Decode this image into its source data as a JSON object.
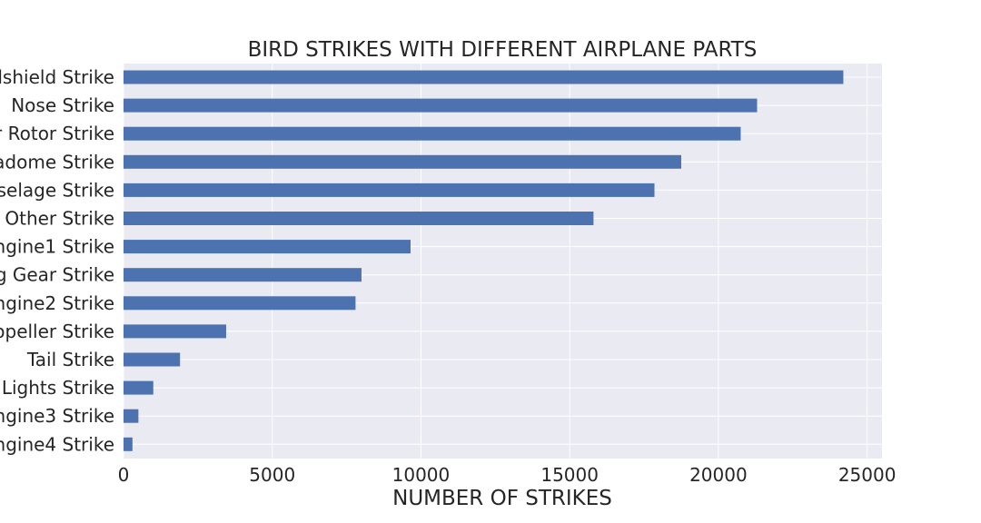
{
  "chart_data": {
    "type": "bar",
    "orientation": "horizontal",
    "title": "BIRD STRIKES WITH DIFFERENT AIRPLANE PARTS",
    "xlabel": "NUMBER OF STRIKES",
    "ylabel": "",
    "categories_top_to_bottom_visible_text": [
      "dshield Strike",
      "Nose Strike",
      "r Rotor Strike",
      "adome Strike",
      "selage Strike",
      "Other Strike",
      "ngine1 Strike",
      "g Gear Strike",
      "ngine2 Strike",
      "opeller Strike",
      "Tail Strike",
      " Lights Strike",
      "ngine3 Strike",
      "ngine4 Strike"
    ],
    "values": [
      24200,
      21300,
      20750,
      18750,
      17850,
      15800,
      9650,
      8000,
      7800,
      3450,
      1900,
      1000,
      500,
      300
    ],
    "xlim": [
      0,
      25500
    ],
    "xticks": [
      0,
      5000,
      10000,
      15000,
      20000,
      25000
    ],
    "xtick_labels": [
      "0",
      "5000",
      "10000",
      "15000",
      "20000",
      "25000"
    ],
    "grid": true,
    "bar_color": "#4c72b0",
    "background_color": "#eaeaf2"
  }
}
